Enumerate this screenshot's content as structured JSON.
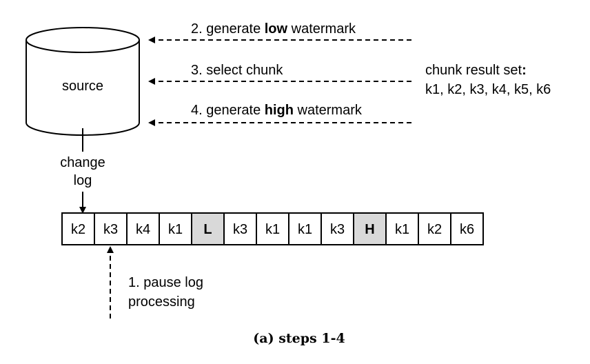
{
  "source_label": "source",
  "change_log_label": [
    "change",
    "log"
  ],
  "arrows": [
    {
      "prefix": "2. generate ",
      "bold": "low",
      "suffix": " watermark"
    },
    {
      "prefix": "3. select chunk",
      "bold": "",
      "suffix": ""
    },
    {
      "prefix": "4. generate ",
      "bold": "high",
      "suffix": " watermark"
    }
  ],
  "chunk_result": {
    "title_prefix": "chunk result set",
    "title_bold_suffix": ":",
    "keys": "k1, k2, k3, k4, k5, k6"
  },
  "log_cells": [
    {
      "label": "k2",
      "marker": false
    },
    {
      "label": "k3",
      "marker": false
    },
    {
      "label": "k4",
      "marker": false
    },
    {
      "label": "k1",
      "marker": false
    },
    {
      "label": "L",
      "marker": true
    },
    {
      "label": "k3",
      "marker": false
    },
    {
      "label": "k1",
      "marker": false
    },
    {
      "label": "k1",
      "marker": false
    },
    {
      "label": "k3",
      "marker": false
    },
    {
      "label": "H",
      "marker": true
    },
    {
      "label": "k1",
      "marker": false
    },
    {
      "label": "k2",
      "marker": false
    },
    {
      "label": "k6",
      "marker": false
    }
  ],
  "pause_label": [
    "1. pause log",
    "processing"
  ],
  "caption": "(a) steps 1-4",
  "colors": {
    "marker_fill": "#d9d9d9",
    "cell_fill": "#ffffff",
    "stroke": "#000000"
  }
}
